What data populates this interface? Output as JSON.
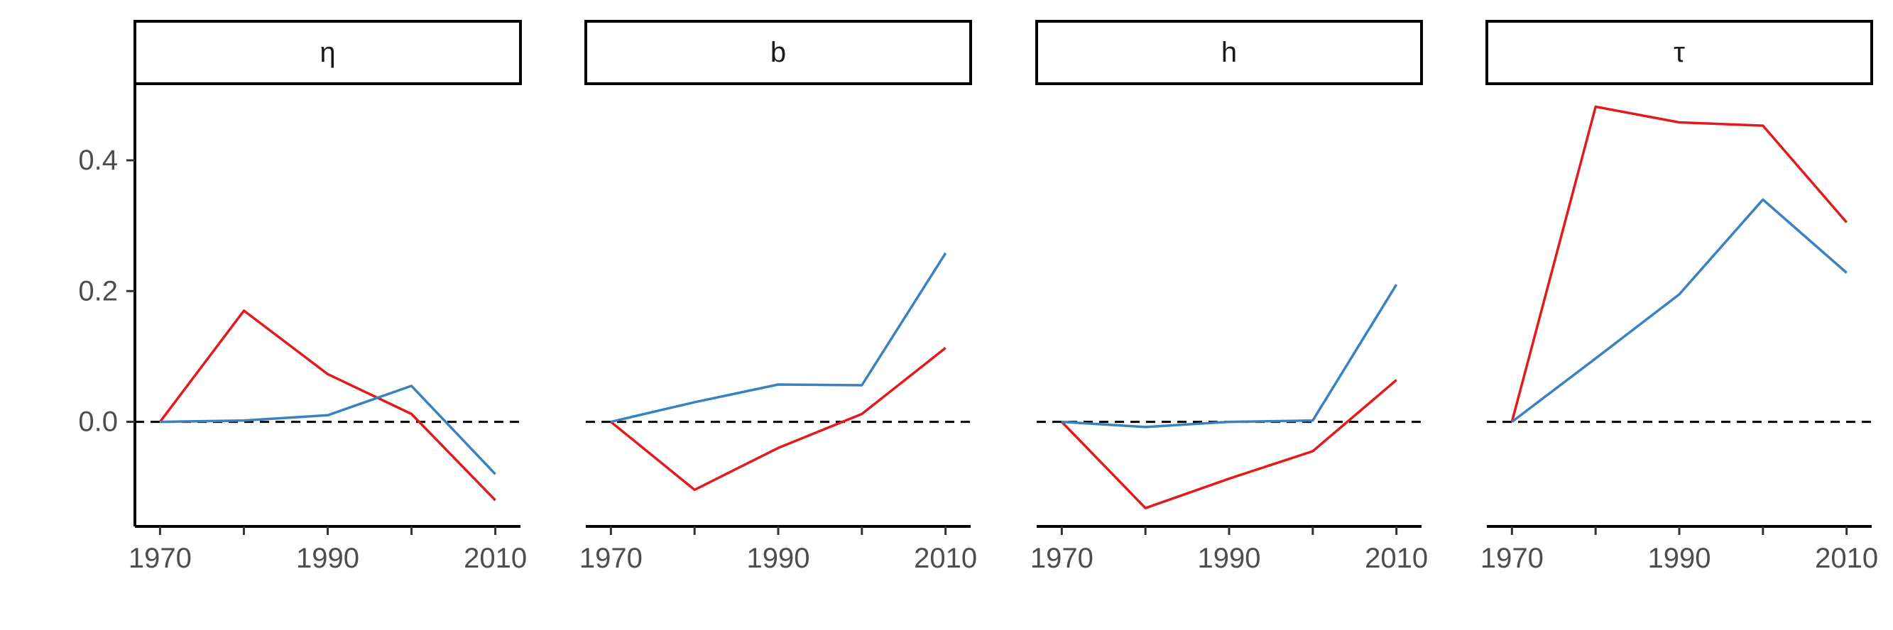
{
  "chart_data": [
    {
      "type": "line",
      "panel": "η",
      "x": [
        1970,
        1980,
        1990,
        2000,
        2010
      ],
      "series": [
        {
          "color": "#e31a1c",
          "values": [
            0.0,
            0.17,
            0.073,
            0.012,
            -0.12
          ]
        },
        {
          "color": "#3a81c0",
          "values": [
            0.0,
            0.002,
            0.01,
            0.055,
            -0.08
          ]
        }
      ],
      "reference_line": {
        "y": 0,
        "style": "dashed"
      },
      "x_ticks": [
        1970,
        1990,
        2010
      ],
      "xlim": [
        1967,
        2013
      ],
      "y_ticks": [
        0.0,
        0.2,
        0.4
      ],
      "y_tick_labels": [
        "0.0",
        "0.2",
        "0.4"
      ],
      "ylim": [
        -0.16,
        0.515
      ]
    },
    {
      "type": "line",
      "panel": "b",
      "x": [
        1970,
        1980,
        1990,
        2000,
        2010
      ],
      "series": [
        {
          "color": "#e31a1c",
          "values": [
            0.0,
            -0.104,
            -0.04,
            0.012,
            0.113
          ]
        },
        {
          "color": "#3a81c0",
          "values": [
            0.0,
            0.03,
            0.057,
            0.056,
            0.258
          ]
        }
      ],
      "reference_line": {
        "y": 0,
        "style": "dashed"
      },
      "x_ticks": [
        1970,
        1990,
        2010
      ],
      "xlim": [
        1967,
        2013
      ],
      "ylim": [
        -0.16,
        0.515
      ]
    },
    {
      "type": "line",
      "panel": "h",
      "x": [
        1970,
        1980,
        1990,
        2000,
        2010
      ],
      "series": [
        {
          "color": "#e31a1c",
          "values": [
            0.0,
            -0.132,
            -0.087,
            -0.045,
            0.064
          ]
        },
        {
          "color": "#3a81c0",
          "values": [
            0.0,
            -0.008,
            0.0,
            0.002,
            0.21
          ]
        }
      ],
      "reference_line": {
        "y": 0,
        "style": "dashed"
      },
      "x_ticks": [
        1970,
        1990,
        2010
      ],
      "xlim": [
        1967,
        2013
      ],
      "ylim": [
        -0.16,
        0.515
      ]
    },
    {
      "type": "line",
      "panel": "τ",
      "x": [
        1970,
        1980,
        1990,
        2000,
        2010
      ],
      "series": [
        {
          "color": "#e31a1c",
          "values": [
            0.0,
            0.482,
            0.458,
            0.453,
            0.305
          ]
        },
        {
          "color": "#3a81c0",
          "values": [
            0.0,
            0.097,
            0.195,
            0.34,
            0.228
          ]
        }
      ],
      "reference_line": {
        "y": 0,
        "style": "dashed"
      },
      "x_ticks": [
        1970,
        1990,
        2010
      ],
      "xlim": [
        1967,
        2013
      ],
      "ylim": [
        -0.16,
        0.515
      ]
    }
  ]
}
